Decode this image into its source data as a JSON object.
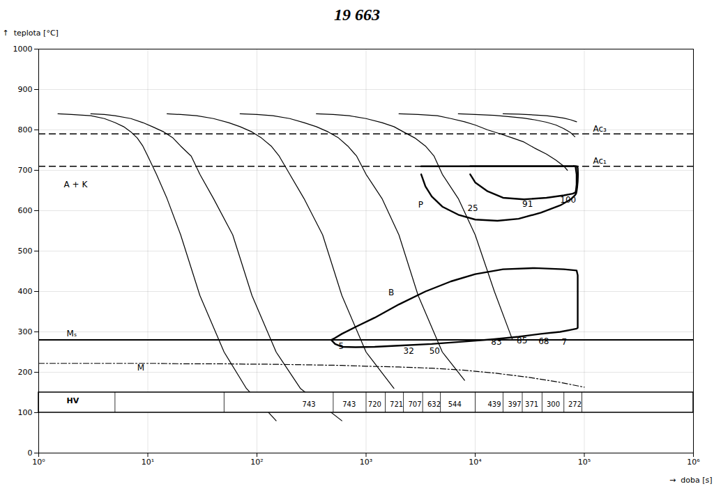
{
  "chart_data": {
    "type": "line",
    "title": "19 663",
    "xlabel": "→  doba [s]",
    "ylabel": "↑  teplota [°C]",
    "log": "x",
    "grid": true,
    "xlim": [
      1,
      1000000
    ],
    "ylim": [
      0,
      1000
    ],
    "xticks": [
      {
        "value": 1,
        "label": "10⁰"
      },
      {
        "value": 10,
        "label": "10¹"
      },
      {
        "value": 100,
        "label": "10²"
      },
      {
        "value": 1000,
        "label": "10³"
      },
      {
        "value": 10000,
        "label": "10⁴"
      },
      {
        "value": 100000,
        "label": "10⁵"
      },
      {
        "value": 1000000,
        "label": "10⁶"
      }
    ],
    "yticks": [
      0,
      100,
      200,
      300,
      400,
      500,
      600,
      700,
      800,
      900,
      1000
    ],
    "reference_lines": [
      {
        "y": 790,
        "line_style": "dashed"
      },
      {
        "y": 710,
        "line_style": "dashed"
      },
      {
        "y": 280,
        "line_style": "solid"
      }
    ],
    "series": [
      {
        "x": [
          1,
          2,
          3,
          5,
          8,
          12,
          20,
          30,
          50,
          80,
          120,
          200,
          350,
          600,
          1000,
          2000,
          4000,
          8000,
          15000,
          30000,
          60000,
          100000
        ],
        "values": [
          222,
          222,
          222,
          222,
          222,
          222,
          221,
          221,
          221,
          220,
          220,
          219,
          218,
          217,
          215,
          213,
          210,
          205,
          198,
          188,
          175,
          163
        ],
        "line_style": "dashdot"
      },
      {
        "x": [
          1.5,
          2,
          3,
          4,
          5,
          6,
          7,
          8,
          9,
          10,
          12,
          15,
          20,
          30,
          50,
          80,
          150
        ],
        "values": [
          840,
          838,
          835,
          828,
          818,
          808,
          795,
          780,
          760,
          735,
          690,
          630,
          540,
          390,
          250,
          160,
          80
        ],
        "line_style": "solid"
      },
      {
        "x": [
          3,
          4,
          5,
          7,
          9,
          11,
          14,
          17,
          20,
          25,
          30,
          40,
          60,
          90,
          150,
          250,
          600
        ],
        "values": [
          840,
          838,
          835,
          828,
          818,
          808,
          795,
          780,
          760,
          735,
          690,
          630,
          540,
          390,
          250,
          160,
          80
        ],
        "line_style": "solid"
      },
      {
        "x": [
          15,
          20,
          28,
          40,
          55,
          70,
          90,
          110,
          135,
          160,
          200,
          270,
          400,
          600,
          1000,
          1800
        ],
        "values": [
          840,
          838,
          835,
          828,
          818,
          808,
          795,
          780,
          760,
          735,
          690,
          630,
          540,
          390,
          250,
          160
        ],
        "line_style": "solid"
      },
      {
        "x": [
          70,
          100,
          140,
          200,
          270,
          350,
          450,
          560,
          680,
          820,
          1000,
          1400,
          2000,
          3000,
          5000,
          8000
        ],
        "values": [
          840,
          838,
          835,
          828,
          818,
          808,
          795,
          780,
          760,
          735,
          690,
          630,
          540,
          390,
          250,
          180
        ],
        "line_style": "solid"
      },
      {
        "x": [
          350,
          500,
          700,
          1000,
          1400,
          1800,
          2200,
          2800,
          3500,
          4200,
          5000,
          7000,
          10000,
          15000,
          22000
        ],
        "values": [
          840,
          838,
          835,
          828,
          818,
          808,
          795,
          780,
          760,
          735,
          690,
          630,
          540,
          400,
          280
        ],
        "line_style": "solid"
      },
      {
        "x": [
          2000,
          3000,
          4500,
          6000,
          8000,
          10000,
          13000,
          17000,
          22000,
          28000,
          35000,
          45000,
          55000,
          65000,
          70000
        ],
        "values": [
          840,
          838,
          835,
          828,
          820,
          812,
          800,
          790,
          780,
          770,
          755,
          740,
          725,
          710,
          700
        ],
        "line_style": "solid"
      },
      {
        "x": [
          7000,
          10000,
          15000,
          20000,
          28000,
          35000,
          45000,
          55000,
          65000,
          75000,
          82000
        ],
        "values": [
          840,
          838,
          836,
          833,
          829,
          825,
          819,
          812,
          803,
          793,
          783
        ],
        "line_style": "solid"
      },
      {
        "x": [
          18000,
          25000,
          35000,
          45000,
          55000,
          65000,
          75000,
          85000
        ],
        "values": [
          840,
          839,
          837,
          835,
          832,
          829,
          825,
          820
        ],
        "line_style": "solid"
      }
    ],
    "outlines": [
      {
        "x": [
          3200,
          3500,
          4000,
          5000,
          7000,
          10000,
          16000,
          25000,
          40000,
          60000,
          75000,
          82000,
          84000,
          85000,
          86000,
          87000,
          87500,
          87000,
          86000,
          85000,
          83000,
          80000
        ],
        "values": [
          690,
          660,
          635,
          610,
          590,
          578,
          575,
          580,
          595,
          613,
          628,
          638,
          642,
          648,
          658,
          672,
          690,
          706,
          710,
          710,
          710,
          710
        ]
      },
      {
        "x": [
          3200,
          80000
        ],
        "values": [
          710,
          710
        ]
      },
      {
        "x": [
          9000,
          10000,
          13000,
          18000,
          28000,
          45000,
          65000,
          78000,
          83000,
          84000,
          85000,
          85000,
          83000,
          80000
        ],
        "values": [
          690,
          670,
          648,
          632,
          628,
          632,
          638,
          642,
          645,
          652,
          665,
          690,
          710,
          710
        ]
      },
      {
        "x": [
          9000,
          80000
        ],
        "values": [
          710,
          710
        ]
      },
      {
        "x": [
          480,
          520,
          600,
          800,
          1200,
          2000,
          3500,
          6000,
          10000,
          18000,
          35000,
          65000,
          85000,
          87000,
          87000,
          85000,
          75000,
          60000,
          40000,
          25000,
          15000,
          8000,
          4000,
          2000,
          1200,
          800,
          600,
          520,
          480
        ],
        "values": [
          280,
          285,
          295,
          312,
          335,
          368,
          400,
          425,
          443,
          455,
          458,
          455,
          452,
          440,
          310,
          308,
          305,
          300,
          295,
          288,
          282,
          276,
          270,
          266,
          263,
          262,
          263,
          270,
          280
        ]
      }
    ],
    "annotations": [
      {
        "text": "Ac₃",
        "x": 120000,
        "y": 796
      },
      {
        "text": "Ac₁",
        "x": 120000,
        "y": 716
      },
      {
        "text": "Mₛ",
        "x": 1.8,
        "y": 288
      },
      {
        "text": "M",
        "x": 8,
        "y": 205
      },
      {
        "text": "A + K",
        "x": 1.7,
        "y": 657
      },
      {
        "text": "P",
        "x": 3000,
        "y": 608
      },
      {
        "text": "25",
        "x": 8500,
        "y": 600
      },
      {
        "text": "91",
        "x": 27000,
        "y": 610
      },
      {
        "text": "100",
        "x": 60000,
        "y": 620
      },
      {
        "text": "B",
        "x": 1600,
        "y": 390
      },
      {
        "text": "5",
        "x": 560,
        "y": 258
      },
      {
        "text": "32",
        "x": 2200,
        "y": 245
      },
      {
        "text": "50",
        "x": 3800,
        "y": 245
      },
      {
        "text": "83",
        "x": 14000,
        "y": 268
      },
      {
        "text": "85",
        "x": 24000,
        "y": 272
      },
      {
        "text": "68",
        "x": 38000,
        "y": 270
      },
      {
        "text": "7",
        "x": 62000,
        "y": 268
      }
    ],
    "hv_table": {
      "label": "HV",
      "label_x": 1.8,
      "label_y": 124,
      "x": [
        1,
        1000000
      ],
      "y": [
        100,
        150
      ],
      "text_y": 120,
      "positions": [
        300,
        700,
        1200,
        1900,
        2800,
        4200,
        6500,
        15000,
        23000,
        33000,
        52000,
        82000
      ],
      "values": [
        "743",
        "743",
        "720",
        "721",
        "707",
        "632",
        "544",
        "439",
        "397",
        "371",
        "300",
        "272"
      ],
      "dividers": [
        5,
        50,
        500,
        1000,
        1500,
        2200,
        3300,
        4800,
        10000,
        18000,
        27000,
        41000,
        65000,
        95000
      ]
    }
  }
}
